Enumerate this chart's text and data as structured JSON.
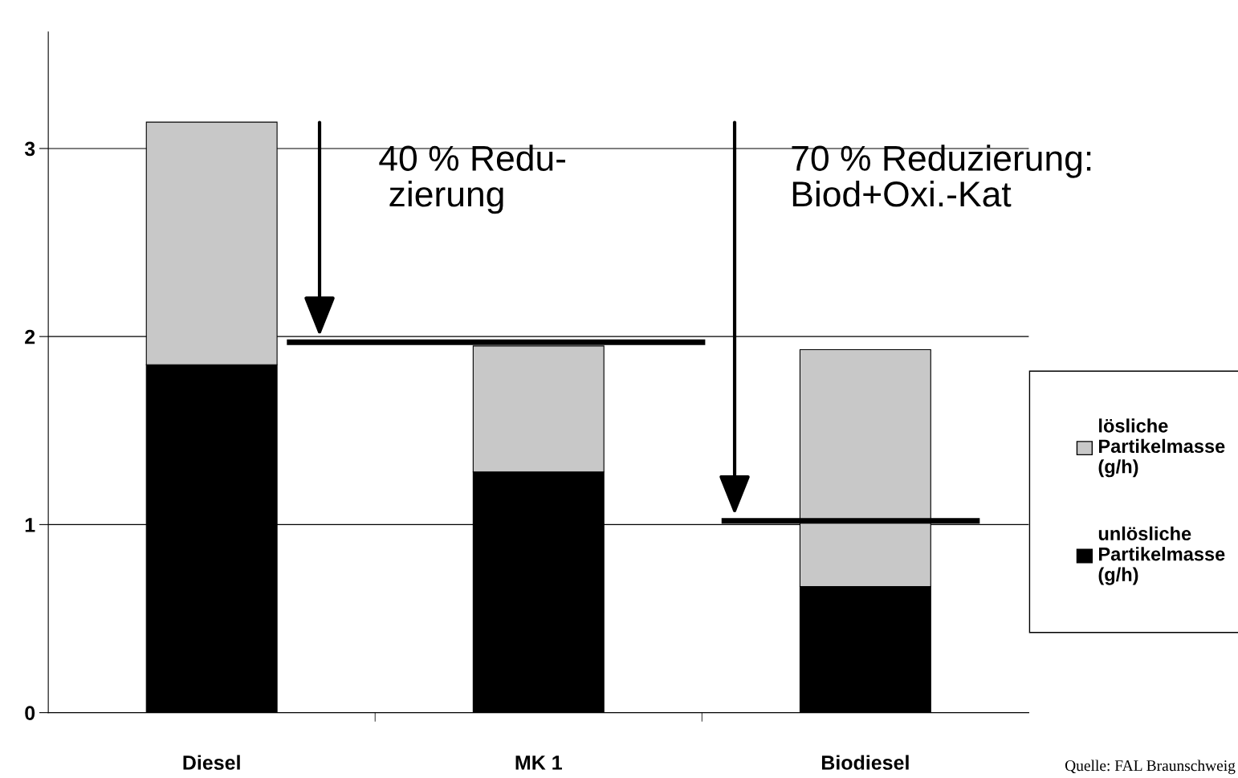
{
  "chart_data": {
    "type": "bar",
    "stacked": true,
    "categories": [
      "Diesel",
      "MK 1",
      "Biodiesel"
    ],
    "series": [
      {
        "name": "unlösliche\nPartikelmasse\n(g/h)",
        "color": "#000000",
        "values": [
          1.85,
          1.28,
          0.67
        ]
      },
      {
        "name": "lösliche\nPartikelmasse\n(g/h)",
        "color": "#c8c8c8",
        "values": [
          1.29,
          0.67,
          1.26
        ]
      }
    ],
    "ylim": [
      0,
      3.62
    ],
    "yticks": [
      0,
      1,
      2,
      3
    ],
    "grid": "y",
    "legend": "right",
    "ref_lines": [
      {
        "axis": "y",
        "value": 1.97,
        "color": "#000000"
      },
      {
        "axis": "y",
        "value": 1.02,
        "color": "#000000"
      }
    ],
    "annotations": [
      "40 % Redu-\n zierung",
      "70 % Reduzierung:\nBiod+Oxi.-Kat",
      "Quelle: FAL Braunschweig"
    ]
  }
}
